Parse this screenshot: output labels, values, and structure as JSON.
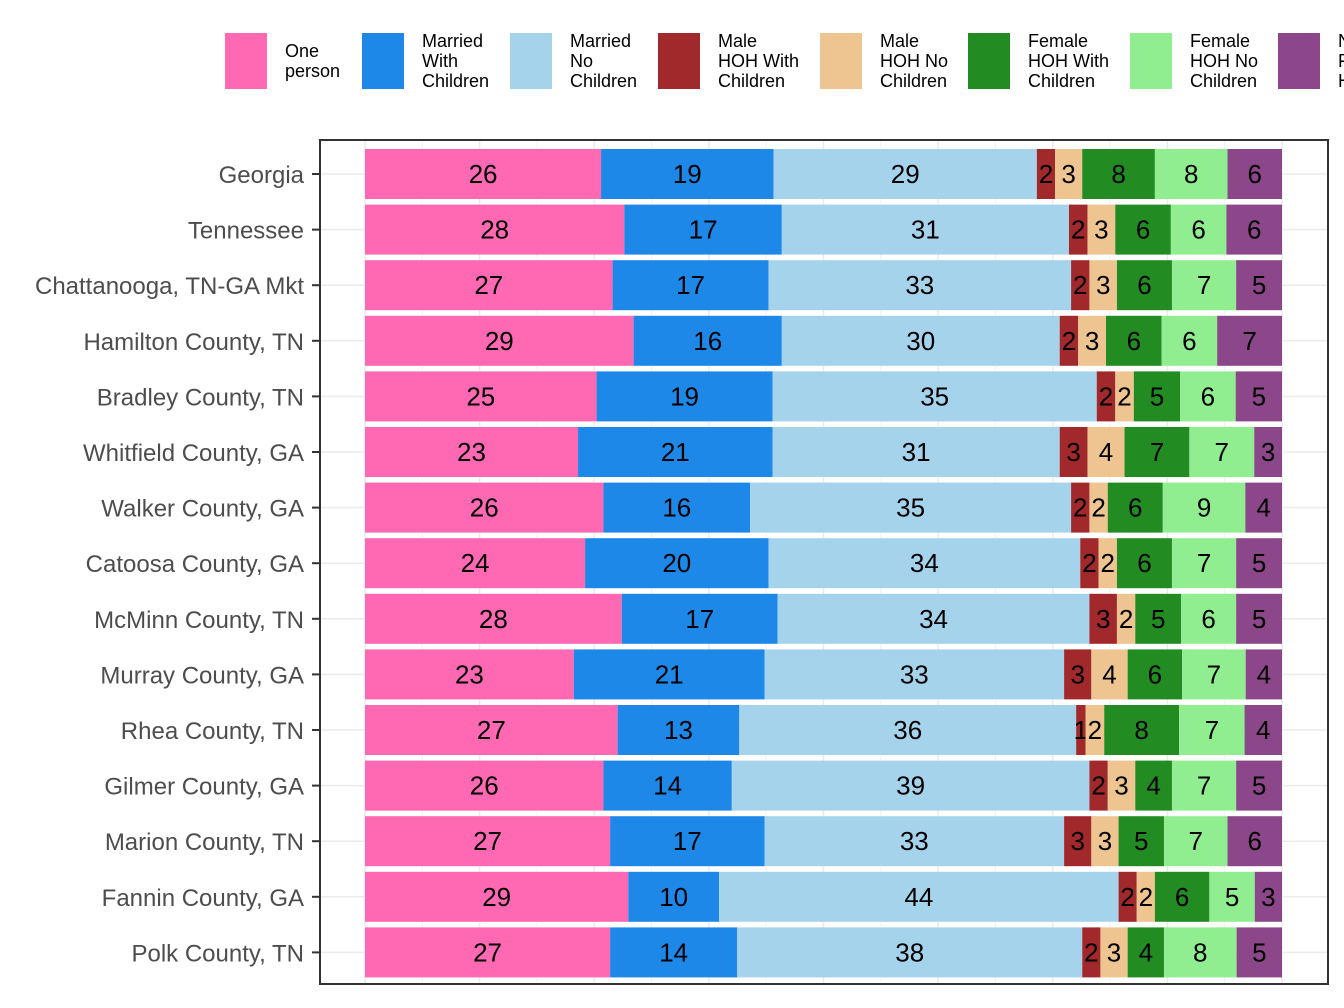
{
  "chart_data": {
    "type": "bar",
    "orientation": "horizontal",
    "stacked": "percent",
    "title": "",
    "xlabel": "",
    "ylabel": "",
    "xlim": [
      0,
      100
    ],
    "grid": true,
    "legend_position": "top",
    "categories": [
      "Georgia",
      "Tennessee",
      "Chattanooga, TN-GA Mkt",
      "Hamilton County, TN",
      "Bradley County, TN",
      "Whitfield County, GA",
      "Walker County, GA",
      "Catoosa County, GA",
      "McMinn County, TN",
      "Murray County, GA",
      "Rhea County, TN",
      "Gilmer County, GA",
      "Marion County, TN",
      "Fannin County, GA",
      "Polk County, TN"
    ],
    "series": [
      {
        "name": "One person",
        "legend_lines": [
          "One",
          "person"
        ],
        "color": "#FF69B4",
        "values": [
          26,
          28,
          27,
          29,
          25,
          23,
          26,
          24,
          28,
          23,
          27,
          26,
          27,
          29,
          27
        ]
      },
      {
        "name": "Married With Children",
        "legend_lines": [
          "Married",
          "With",
          "Children"
        ],
        "color": "#1E88E8",
        "values": [
          19,
          17,
          17,
          16,
          19,
          21,
          16,
          20,
          17,
          21,
          13,
          14,
          17,
          10,
          14
        ]
      },
      {
        "name": "Married No Children",
        "legend_lines": [
          "Married",
          "No",
          "Children"
        ],
        "color": "#A6D3EC",
        "values": [
          29,
          31,
          33,
          30,
          35,
          31,
          35,
          34,
          34,
          33,
          36,
          39,
          33,
          44,
          38
        ]
      },
      {
        "name": "Male HOH With Children",
        "legend_lines": [
          "Male",
          "HOH With",
          "Children"
        ],
        "color": "#A2292B",
        "values": [
          2,
          2,
          2,
          2,
          2,
          3,
          2,
          2,
          3,
          3,
          1,
          2,
          3,
          2,
          2
        ]
      },
      {
        "name": "Male HOH No Children",
        "legend_lines": [
          "Male",
          "HOH No",
          "Children"
        ],
        "color": "#EEC591",
        "values": [
          3,
          3,
          3,
          3,
          2,
          4,
          2,
          2,
          2,
          4,
          2,
          3,
          3,
          2,
          3
        ]
      },
      {
        "name": "Female HOH With Children",
        "legend_lines": [
          "Female",
          "HOH With",
          "Children"
        ],
        "color": "#228B22",
        "values": [
          8,
          6,
          6,
          6,
          5,
          7,
          6,
          6,
          5,
          6,
          8,
          4,
          5,
          6,
          4
        ]
      },
      {
        "name": "Female HOH No Children",
        "legend_lines": [
          "Female",
          "HOH No",
          "Children"
        ],
        "color": "#90EE90",
        "values": [
          8,
          6,
          7,
          6,
          6,
          7,
          9,
          7,
          6,
          7,
          7,
          7,
          7,
          5,
          8
        ]
      },
      {
        "name": "N F H",
        "legend_lines": [
          "N",
          "F",
          "H"
        ],
        "color": "#8B4789",
        "values": [
          6,
          6,
          5,
          7,
          5,
          3,
          4,
          5,
          5,
          4,
          4,
          5,
          6,
          3,
          5
        ]
      }
    ]
  }
}
